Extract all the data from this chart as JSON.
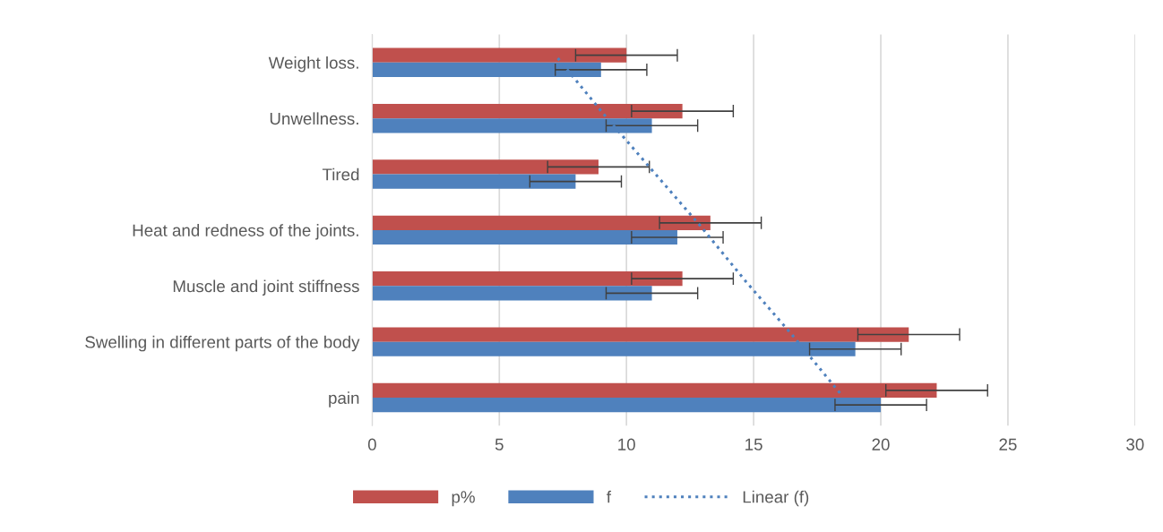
{
  "chart_data": {
    "type": "bar",
    "orientation": "horizontal",
    "categories": [
      "Weight loss.",
      "Unwellness.",
      "Tired",
      "Heat and redness of the joints.",
      "Muscle and joint stiffness",
      "Swelling in different parts of the body",
      "pain"
    ],
    "series": [
      {
        "name": "p%",
        "color": "#c0504d",
        "values": [
          10.0,
          12.2,
          8.9,
          13.3,
          12.2,
          21.1,
          22.2
        ],
        "errors": [
          2,
          2,
          2,
          2,
          2,
          2,
          2
        ]
      },
      {
        "name": "f",
        "color": "#4f81bd",
        "values": [
          9.0,
          11.0,
          8.0,
          12.0,
          11.0,
          19.0,
          20.0
        ],
        "errors": [
          1.8,
          1.8,
          1.8,
          1.8,
          1.8,
          1.8,
          1.8
        ]
      },
      {
        "name": "Linear (f)",
        "type": "line",
        "color": "#4f81bd",
        "line_style": "dotted",
        "values": [
          7.3,
          9.1,
          11.0,
          12.9,
          14.7,
          16.6,
          18.4
        ]
      }
    ],
    "xlim": [
      0,
      30
    ],
    "xticks": [
      0,
      5,
      10,
      15,
      20,
      25,
      30
    ],
    "grid": "x",
    "legend": "bottom"
  }
}
